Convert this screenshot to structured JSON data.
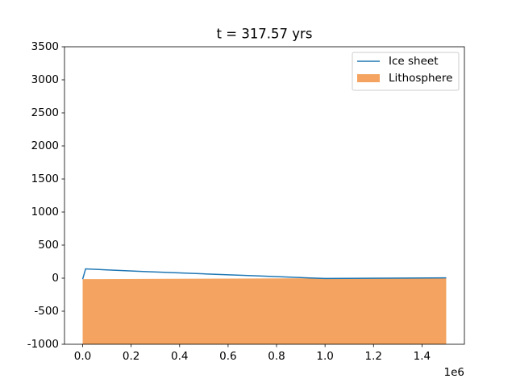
{
  "chart_data": {
    "type": "line",
    "title": "t = 317.57 yrs",
    "x": [
      0,
      12000,
      250000,
      500000,
      750000,
      1000000,
      1250000,
      1500000
    ],
    "series": [
      {
        "name": "Ice sheet",
        "type": "line",
        "color": "#1f77b4",
        "values": [
          -15,
          140,
          100,
          65,
          30,
          -5,
          0,
          5
        ]
      },
      {
        "name": "Lithosphere",
        "type": "area",
        "color": "#f4a460",
        "values": [
          -15,
          -14,
          -11,
          -8,
          -4,
          -1,
          0,
          0
        ]
      }
    ],
    "xlim": [
      -75000,
      1575000
    ],
    "xticks": [
      {
        "value": 0,
        "label": "0.0"
      },
      {
        "value": 200000,
        "label": "0.2"
      },
      {
        "value": 400000,
        "label": "0.4"
      },
      {
        "value": 600000,
        "label": "0.6"
      },
      {
        "value": 800000,
        "label": "0.8"
      },
      {
        "value": 1000000,
        "label": "1.0"
      },
      {
        "value": 1200000,
        "label": "1.2"
      },
      {
        "value": 1400000,
        "label": "1.4"
      }
    ],
    "x_offset_label": "1e6",
    "ylim": [
      -1000,
      3500
    ],
    "yticks": [
      -1000,
      -500,
      0,
      500,
      1000,
      1500,
      2000,
      2500,
      3000,
      3500
    ],
    "grid": false,
    "legend": "upper right"
  }
}
